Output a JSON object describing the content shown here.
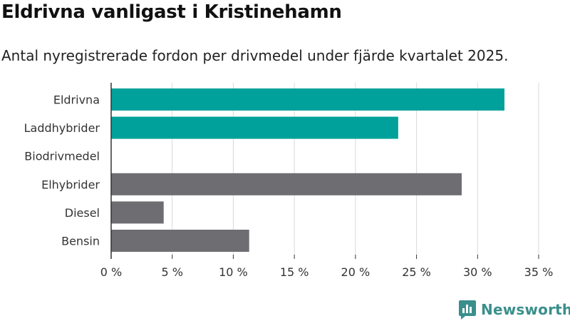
{
  "title": "Eldrivna vanligast i Kristinehamn",
  "subtitle": "Antal nyregistrerade fordon per drivmedel under fjärde kvartalet 2025.",
  "logo": {
    "text": "Newsworthy"
  },
  "colors": {
    "highlight": "#00a19a",
    "other": "#6e6d72",
    "grid": "#d9d9d9",
    "axis": "#333333",
    "logo": "#3a8f8c"
  },
  "chart_data": {
    "type": "bar",
    "orientation": "horizontal",
    "title": "Eldrivna vanligast i Kristinehamn",
    "subtitle": "Antal nyregistrerade fordon per drivmedel under fjärde kvartalet 2025.",
    "categories": [
      "Eldrivna",
      "Laddhybrider",
      "Biodrivmedel",
      "Elhybrider",
      "Diesel",
      "Bensin"
    ],
    "values": [
      32.2,
      23.5,
      0,
      28.7,
      4.3,
      11.3
    ],
    "highlighted": [
      true,
      true,
      true,
      false,
      false,
      false
    ],
    "unit": "%",
    "xlim": [
      0,
      35
    ],
    "xticks": [
      0,
      5,
      10,
      15,
      20,
      25,
      30,
      35
    ],
    "xtick_labels": [
      "0 %",
      "5 %",
      "10 %",
      "15 %",
      "20 %",
      "25 %",
      "30 %",
      "35 %"
    ],
    "grid": true,
    "xlabel": "",
    "ylabel": ""
  }
}
